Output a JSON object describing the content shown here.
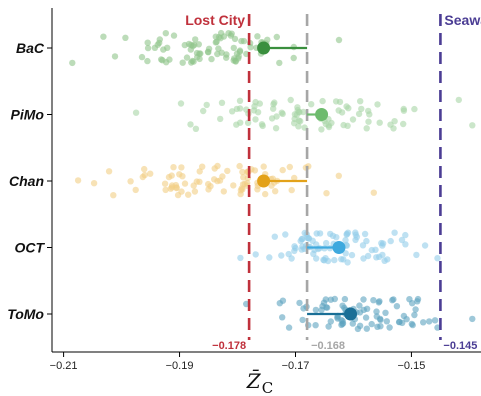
{
  "chart_data": {
    "type": "scatter",
    "xlabel": "Z̄",
    "xlabel_sub": "C",
    "xlim": [
      -0.212,
      -0.138
    ],
    "x_ticks": [
      -0.21,
      -0.19,
      -0.17,
      -0.15
    ],
    "x_tick_labels": [
      "-0.21",
      "-0.19",
      "-0.17",
      "-0.15"
    ],
    "grid": false,
    "categories": [
      "BaC",
      "PiMo",
      "Chan",
      "OCT",
      "ToMo"
    ],
    "reference_lines": [
      {
        "name": "Lost City",
        "value": -0.178,
        "value_label": "-0.178",
        "color": "#c0313c",
        "style": "dashed"
      },
      {
        "name": "",
        "value": -0.168,
        "value_label": "-0.168",
        "color": "#a6a6a6",
        "style": "dashed"
      },
      {
        "name": "Seawater",
        "value": -0.145,
        "value_label": "-0.145",
        "color": "#4b3d94",
        "style": "dashed"
      }
    ],
    "baseline": -0.168,
    "series": [
      {
        "category": "BaC",
        "mean": -0.1755,
        "color": "#3a8f3e",
        "point_color": "#8fc48a",
        "points_range": [
          -0.2085,
          -0.1625
        ],
        "n_points": 85
      },
      {
        "category": "PiMo",
        "mean": -0.1655,
        "color": "#6dbb6d",
        "point_color": "#a9d6a6",
        "points_range": [
          -0.1975,
          -0.1395
        ],
        "n_points": 85
      },
      {
        "category": "Chan",
        "mean": -0.1755,
        "color": "#e3a21a",
        "point_color": "#f2cf86",
        "points_range": [
          -0.2075,
          -0.1565
        ],
        "n_points": 85
      },
      {
        "category": "OCT",
        "mean": -0.1625,
        "color": "#3ea9de",
        "point_color": "#92cde9",
        "points_range": [
          -0.1795,
          -0.1455
        ],
        "n_points": 85
      },
      {
        "category": "ToMo",
        "mean": -0.1605,
        "color": "#1a6f96",
        "point_color": "#5da3bf",
        "points_range": [
          -0.1785,
          -0.1395
        ],
        "n_points": 85
      }
    ]
  }
}
